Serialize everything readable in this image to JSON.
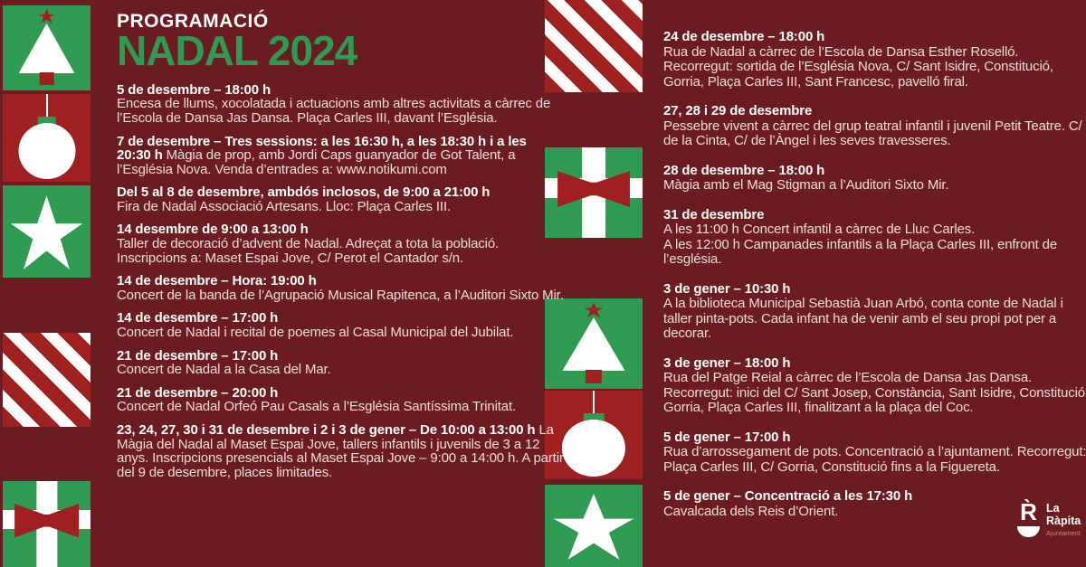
{
  "page": {
    "colors": {
      "background": "#6B1C21",
      "green": "#2E9B51",
      "red": "#A02020",
      "heading": "#FFFFFF",
      "body_text": "#F1DFDD",
      "logo_subtitle": "#C9827C"
    }
  },
  "header": {
    "kicker": "PROGRAMACIÓ",
    "title": "NADAL 2024"
  },
  "decor": {
    "left_strip": [
      "christmas-tree",
      "ornament",
      "star",
      "candy-stripes",
      "gift"
    ],
    "middle_strip": [
      "candy-stripes",
      "gift",
      "christmas-tree",
      "ornament",
      "star"
    ]
  },
  "events_left": [
    {
      "title": "5 de desembre – 18:00 h",
      "body": "Encesa de llums, xocolatada i actuacions amb altres activitats a càrrec de l’Escola de Dansa Jas Dansa. Plaça Carles III, davant l’Església."
    },
    {
      "title": "7 de desembre – Tres sessions: a les 16:30 h, a les 18:30 h i a les 20:30 h",
      "inline": true,
      "body": "Màgia de prop, amb Jordi Caps guanyador de Got Talent, a l’Església Nova. Venda d’entrades a: www.notikumi.com"
    },
    {
      "title": "Del 5 al 8 de desembre, ambdós inclosos, de 9:00 a 21:00 h",
      "body": "Fira de Nadal Associació Artesans. Lloc: Plaça Carles III."
    },
    {
      "title": "14 desembre de 9:00 a 13:00 h",
      "body": "Taller de decoració d’advent de Nadal. Adreçat a tota la població. Inscripcions a: Maset Espai Jove, C/ Perot el Cantador s/n."
    },
    {
      "title": "14 de desembre – Hora: 19:00 h",
      "body": "Concert de la banda de l’Agrupació Musical Rapitenca, a l’Auditori Sixto Mir."
    },
    {
      "title": "14 de desembre – 17:00 h",
      "body": "Concert de Nadal i recital de poemes al Casal Municipal del Jubilat."
    },
    {
      "title": "21 de desembre – 17:00 h",
      "body": "Concert de Nadal a la Casa del Mar."
    },
    {
      "title": "21 de desembre – 20:00 h",
      "body": "Concert de Nadal Orfeó Pau Casals a l’Església Santíssima Trinitat."
    },
    {
      "title": "23, 24, 27, 30 i 31 de desembre i 2 i 3 de gener – De 10:00 a 13:00 h",
      "inline": true,
      "body": "La Màgia del Nadal al Maset Espai Jove, tallers infantils i juvenils de 3 a 12 anys.  Inscripcions presencials al Maset Espai Jove – 9:00 a 14:00 h. A partir del 9 de desembre, places limitades."
    }
  ],
  "events_right": [
    {
      "title": "24 de desembre – 18:00 h",
      "body": "Rua de Nadal a càrrec de l’Escola de Dansa Esther Roselló. Recorregut: sortida de l’Església Nova, C/ Sant Isidre, Constitució, Gorria, Plaça Carles III, Sant Francesc, pavelló firal."
    },
    {
      "title": "27, 28 i 29 de desembre",
      "body": "Pessebre vivent a càrrec del grup teatral infantil i juvenil Petit Teatre. C/ de la Cinta, C/ de l’Àngel i les seves travesseres."
    },
    {
      "title": "28 de desembre – 18:00 h",
      "body": "Màgia amb el Mag Stigman a l’Auditori Sixto Mir."
    },
    {
      "title": "31 de desembre",
      "body": "A les 11:00 h Concert infantil a càrrec de Lluc Carles.\nA les 12:00 h Campanades infantils a la Plaça Carles III, enfront de l’església."
    },
    {
      "title": "3 de gener – 10:30 h",
      "body": "A la biblioteca Municipal Sebastià Juan Arbó, conta conte de Nadal i taller pinta-pots. Cada infant ha de venir amb el seu propi pot per a decorar."
    },
    {
      "title": "3 de gener – 18:00 h",
      "body": "Rua del Patge Reial a càrrec de l’Escola de Dansa Jas Dansa. Recorregut: inici del C/ Sant Josep, Constància, Sant Isidre, Constitució, Gorria, Plaça Carles III, finalitzant a la plaça del Coc."
    },
    {
      "title": "5 de gener – 17:00 h",
      "body": "Rua d’arrossegament de pots. Concentració a l’ajuntament. Recorregut: Plaça Carles III, C/ Gorria, Constitució fins a la Figuereta."
    },
    {
      "title": "5 de gener – Concentració a les 17:30 h",
      "body": "Cavalcada dels Reis d’Orient."
    }
  ],
  "logo": {
    "letter": "R̀",
    "name_line1": "La",
    "name_line2": "Ràpita",
    "subtitle": "Ajuntament"
  }
}
